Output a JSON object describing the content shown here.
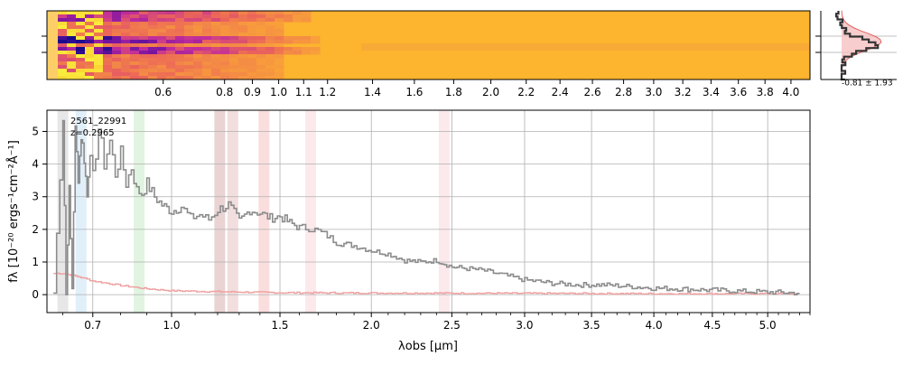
{
  "colors": {
    "spectrum": "#8c8c8c",
    "error": "#f0a0a0",
    "grid": "#b0b0b0",
    "heat_low": "#1a0a8c",
    "heat_mid": "#c02c9c",
    "heat_high": "#fdb42f",
    "profile": "#333333",
    "profile_fill": "#f6c0c0",
    "profile_line": "#e06060"
  },
  "chart_data": [
    {
      "type": "heatmap",
      "panel": "2d-spectrum",
      "xscale": "sqrt",
      "xticks_labels": [
        "0.6",
        "0.8",
        "0.9",
        "1.0",
        "1.1",
        "1.2",
        "1.4",
        "1.6",
        "1.8",
        "2.0",
        "2.2",
        "2.4",
        "2.6",
        "2.8",
        "3.0",
        "3.2",
        "3.4",
        "3.6",
        "3.8",
        "4.0"
      ],
      "xticks_values": [
        0.6,
        0.8,
        0.9,
        1.0,
        1.1,
        1.2,
        1.4,
        1.6,
        1.8,
        2.0,
        2.2,
        2.4,
        2.6,
        2.8,
        3.0,
        3.2,
        3.4,
        3.6,
        3.8,
        4.0
      ],
      "xlim": [
        0.3,
        4.15
      ]
    },
    {
      "type": "line",
      "panel": "profile",
      "annotation": "-0.81 ± 1.93"
    },
    {
      "type": "line",
      "panel": "1d-spectrum",
      "title": "",
      "annotation_lines": [
        "2561_22991",
        "z=0.2965"
      ],
      "xlabel": "λobs [μm]",
      "ylabel": "fλ [10⁻²⁰ ergs⁻¹cm⁻²Å⁻¹]",
      "xscale": "sqrt",
      "xlim": [
        0.55,
        5.4
      ],
      "ylim": [
        -0.55,
        5.65
      ],
      "grid": true,
      "xticks": [
        0.7,
        1.0,
        1.5,
        2.0,
        2.5,
        3.0,
        3.5,
        4.0,
        4.5,
        5.0
      ],
      "xtick_labels": [
        "0.7",
        "1.0",
        "1.5",
        "2.0",
        "2.5",
        "3.0",
        "3.5",
        "4.0",
        "4.5",
        "5.0"
      ],
      "yticks": [
        0,
        1,
        2,
        3,
        4,
        5
      ],
      "ytick_labels": [
        "0",
        "1",
        "2",
        "3",
        "4",
        "5"
      ],
      "line_bands": [
        {
          "x": 0.6,
          "color": "#bbbbbb"
        },
        {
          "x": 0.66,
          "color": "#a8d0ee"
        },
        {
          "x": 0.87,
          "color": "#a8e0a8"
        },
        {
          "x": 1.21,
          "color": "#c08080"
        },
        {
          "x": 1.27,
          "color": "#d8a0a0"
        },
        {
          "x": 1.42,
          "color": "#f0a0a0"
        },
        {
          "x": 1.66,
          "color": "#f6c0c8"
        },
        {
          "x": 2.45,
          "color": "#f6c0c8"
        }
      ],
      "series": [
        {
          "values_x": [
            0.57,
            0.6,
            0.61,
            0.62,
            0.63,
            0.64,
            0.65,
            0.66,
            0.67,
            0.68,
            0.69,
            0.7,
            0.72,
            0.74,
            0.76,
            0.78,
            0.8,
            0.82,
            0.84,
            0.86,
            0.88,
            0.9,
            0.93,
            0.96,
            1.0,
            1.04,
            1.08,
            1.12,
            1.16,
            1.2,
            1.25,
            1.3,
            1.35,
            1.4,
            1.45,
            1.5,
            1.55,
            1.6,
            1.65,
            1.7,
            1.75,
            1.8,
            1.9,
            2.0,
            2.1,
            2.2,
            2.3,
            2.4,
            2.5,
            2.6,
            2.7,
            2.8,
            2.9,
            3.0,
            3.2,
            3.4,
            3.6,
            3.8,
            4.0,
            4.2,
            4.4,
            4.6,
            4.8,
            5.0,
            5.2,
            5.3
          ],
          "values_y": [
            0.05,
            5.5,
            0.0,
            3.2,
            0.2,
            5.0,
            3.6,
            4.9,
            4.2,
            3.0,
            4.5,
            3.6,
            5.1,
            4.0,
            4.7,
            3.7,
            4.3,
            3.4,
            3.9,
            3.2,
            3.1,
            3.4,
            3.0,
            2.75,
            2.55,
            2.7,
            2.35,
            2.45,
            2.3,
            2.6,
            2.75,
            2.25,
            2.6,
            2.5,
            2.35,
            2.4,
            2.2,
            2.05,
            2.05,
            1.95,
            1.8,
            1.6,
            1.5,
            1.35,
            1.25,
            1.05,
            1.0,
            1.05,
            0.85,
            0.8,
            0.75,
            0.65,
            0.55,
            0.45,
            0.35,
            0.3,
            0.3,
            0.25,
            0.2,
            0.18,
            0.15,
            0.13,
            0.1,
            0.08,
            0.06,
            0.05
          ]
        },
        {
          "values_x": [
            0.57,
            0.6,
            0.65,
            0.7,
            0.8,
            0.9,
            1.0,
            1.2,
            1.5,
            2.0,
            3.0,
            4.0,
            5.0,
            5.3
          ],
          "values_y": [
            0.65,
            0.65,
            0.55,
            0.42,
            0.28,
            0.18,
            0.12,
            0.09,
            0.06,
            0.05,
            0.04,
            0.03,
            0.03,
            0.03
          ]
        }
      ]
    }
  ]
}
